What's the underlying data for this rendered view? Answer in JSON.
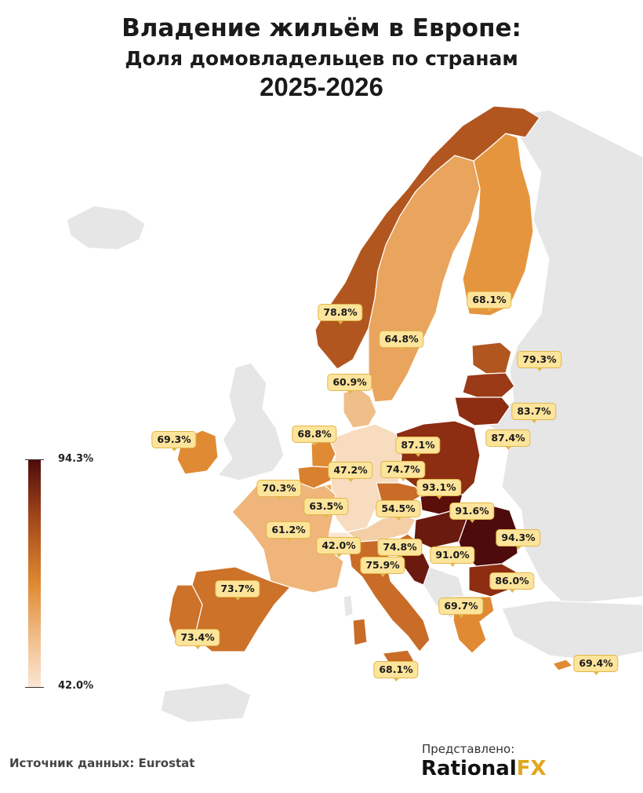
{
  "title": {
    "line1": "Владение жильём в Европе:",
    "line2": "Доля домовладельцев по странам",
    "line3": "2025-2026"
  },
  "legend": {
    "max_label": "94.3%",
    "min_label": "42.0%",
    "max": 94.3,
    "min": 42.0
  },
  "source": "Источник данных: Eurostat",
  "presented_by": "Представлено:",
  "brand": {
    "part1": "Rational",
    "part2": "FX",
    "accent": "#e0a61c"
  },
  "colors": {
    "non_data": "#e6e6e6",
    "border": "#ffffff"
  },
  "countries": [
    {
      "id": "norway",
      "value": "78.8%",
      "color": "#b2561f"
    },
    {
      "id": "sweden",
      "value": "64.8%",
      "color": "#e9a45d"
    },
    {
      "id": "finland",
      "value": "68.1%",
      "color": "#e6953f"
    },
    {
      "id": "estonia",
      "value": "79.3%",
      "color": "#b2561f"
    },
    {
      "id": "latvia",
      "value": "83.7%",
      "color": "#9a3a16"
    },
    {
      "id": "lithuania",
      "value": "87.4%",
      "color": "#8d2d12"
    },
    {
      "id": "denmark",
      "value": "60.9%",
      "color": "#efbf8a"
    },
    {
      "id": "ireland",
      "value": "69.3%",
      "color": "#e08a33"
    },
    {
      "id": "netherlands",
      "value": "68.8%",
      "color": "#e08a33"
    },
    {
      "id": "belgium",
      "value": "70.3%",
      "color": "#d9802f"
    },
    {
      "id": "luxembourg",
      "value": "63.5%",
      "color": "#ecac66"
    },
    {
      "id": "germany",
      "value": "47.2%",
      "color": "#f8dcc0"
    },
    {
      "id": "poland",
      "value": "87.1%",
      "color": "#8d2d12"
    },
    {
      "id": "czechia",
      "value": "74.7%",
      "color": "#c96c27"
    },
    {
      "id": "slovakia",
      "value": "93.1%",
      "color": "#5a0f0a"
    },
    {
      "id": "austria",
      "value": "54.5%",
      "color": "#f4cfa6"
    },
    {
      "id": "hungary",
      "value": "91.6%",
      "color": "#6a1a0f"
    },
    {
      "id": "romania",
      "value": "94.3%",
      "color": "#4e0b0b"
    },
    {
      "id": "france",
      "value": "61.2%",
      "color": "#efb57a"
    },
    {
      "id": "switzerland",
      "value": "42.0%",
      "color": "#fbe5d3"
    },
    {
      "id": "slovenia",
      "value": "74.8%",
      "color": "#c96c27"
    },
    {
      "id": "croatia",
      "value": "91.0%",
      "color": "#6a1a0f"
    },
    {
      "id": "italy",
      "value": "75.9%",
      "color": "#c96c27"
    },
    {
      "id": "bulgaria",
      "value": "86.0%",
      "color": "#8d2d12"
    },
    {
      "id": "greece",
      "value": "69.7%",
      "color": "#e08a33"
    },
    {
      "id": "spain",
      "value": "73.7%",
      "color": "#cc7229"
    },
    {
      "id": "portugal",
      "value": "73.4%",
      "color": "#cc7229"
    },
    {
      "id": "malta",
      "value": "68.1%",
      "color": "#e08a33"
    },
    {
      "id": "cyprus",
      "value": "69.4%",
      "color": "#e08a33"
    }
  ]
}
